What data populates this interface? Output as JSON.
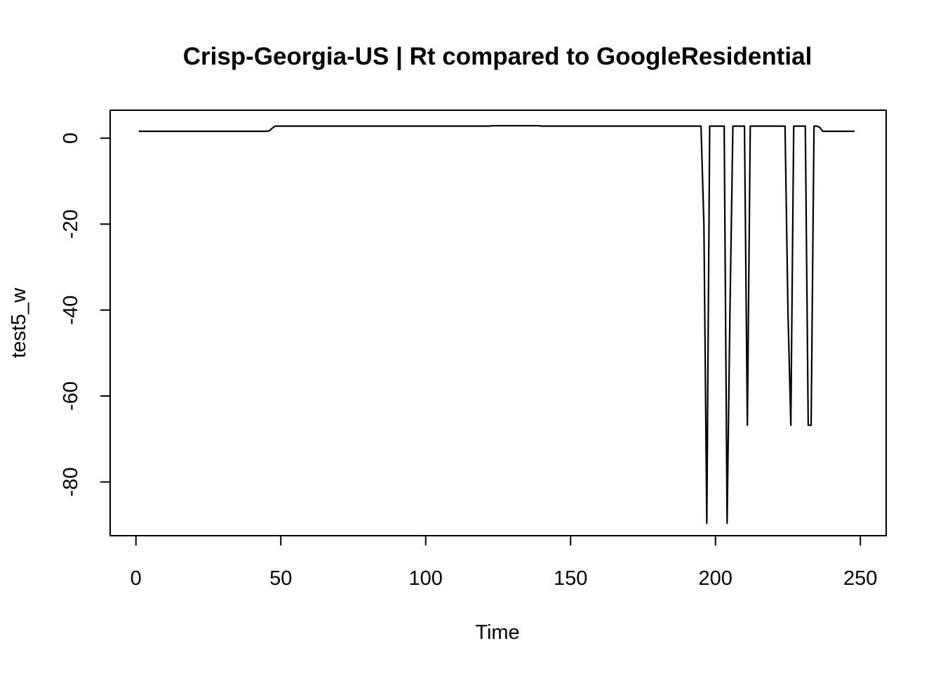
{
  "chart_data": {
    "type": "line",
    "title": "Crisp-Georgia-US | Rt compared to GoogleResidential",
    "xlabel": "Time",
    "ylabel": "test5_w",
    "xlim": [
      -8.9,
      258.9
    ],
    "ylim": [
      -92.5,
      6.5
    ],
    "x_ticks": [
      0,
      50,
      100,
      150,
      200,
      250
    ],
    "y_ticks": [
      0,
      -20,
      -40,
      -60,
      -80
    ],
    "x_tick_labels": [
      "0",
      "50",
      "100",
      "150",
      "200",
      "250"
    ],
    "y_tick_labels": [
      "0",
      "-20",
      "-40",
      "-60",
      "-80"
    ],
    "grid": false,
    "legend": "none",
    "series": [
      {
        "color": "#000000",
        "points": [
          [
            1,
            1.6
          ],
          [
            45,
            1.6
          ],
          [
            46,
            1.7
          ],
          [
            47,
            2.3
          ],
          [
            48,
            2.8
          ],
          [
            122,
            2.8
          ],
          [
            123,
            2.9
          ],
          [
            139,
            2.9
          ],
          [
            140,
            2.8
          ],
          [
            195,
            2.8
          ],
          [
            196,
            -20
          ],
          [
            197,
            -89.6
          ],
          [
            198,
            2.8
          ],
          [
            203,
            2.8
          ],
          [
            204,
            -89.6
          ],
          [
            205,
            -40
          ],
          [
            206,
            2.8
          ],
          [
            210,
            2.8
          ],
          [
            211,
            -66.8
          ],
          [
            212,
            2.8
          ],
          [
            224,
            2.8
          ],
          [
            225,
            -40
          ],
          [
            226,
            -66.8
          ],
          [
            227,
            2.8
          ],
          [
            231,
            2.8
          ],
          [
            232,
            -66.8
          ],
          [
            233,
            -66.8
          ],
          [
            234,
            2.8
          ],
          [
            235,
            2.8
          ],
          [
            236,
            2.5
          ],
          [
            237,
            1.6
          ],
          [
            248,
            1.6
          ]
        ]
      }
    ]
  }
}
